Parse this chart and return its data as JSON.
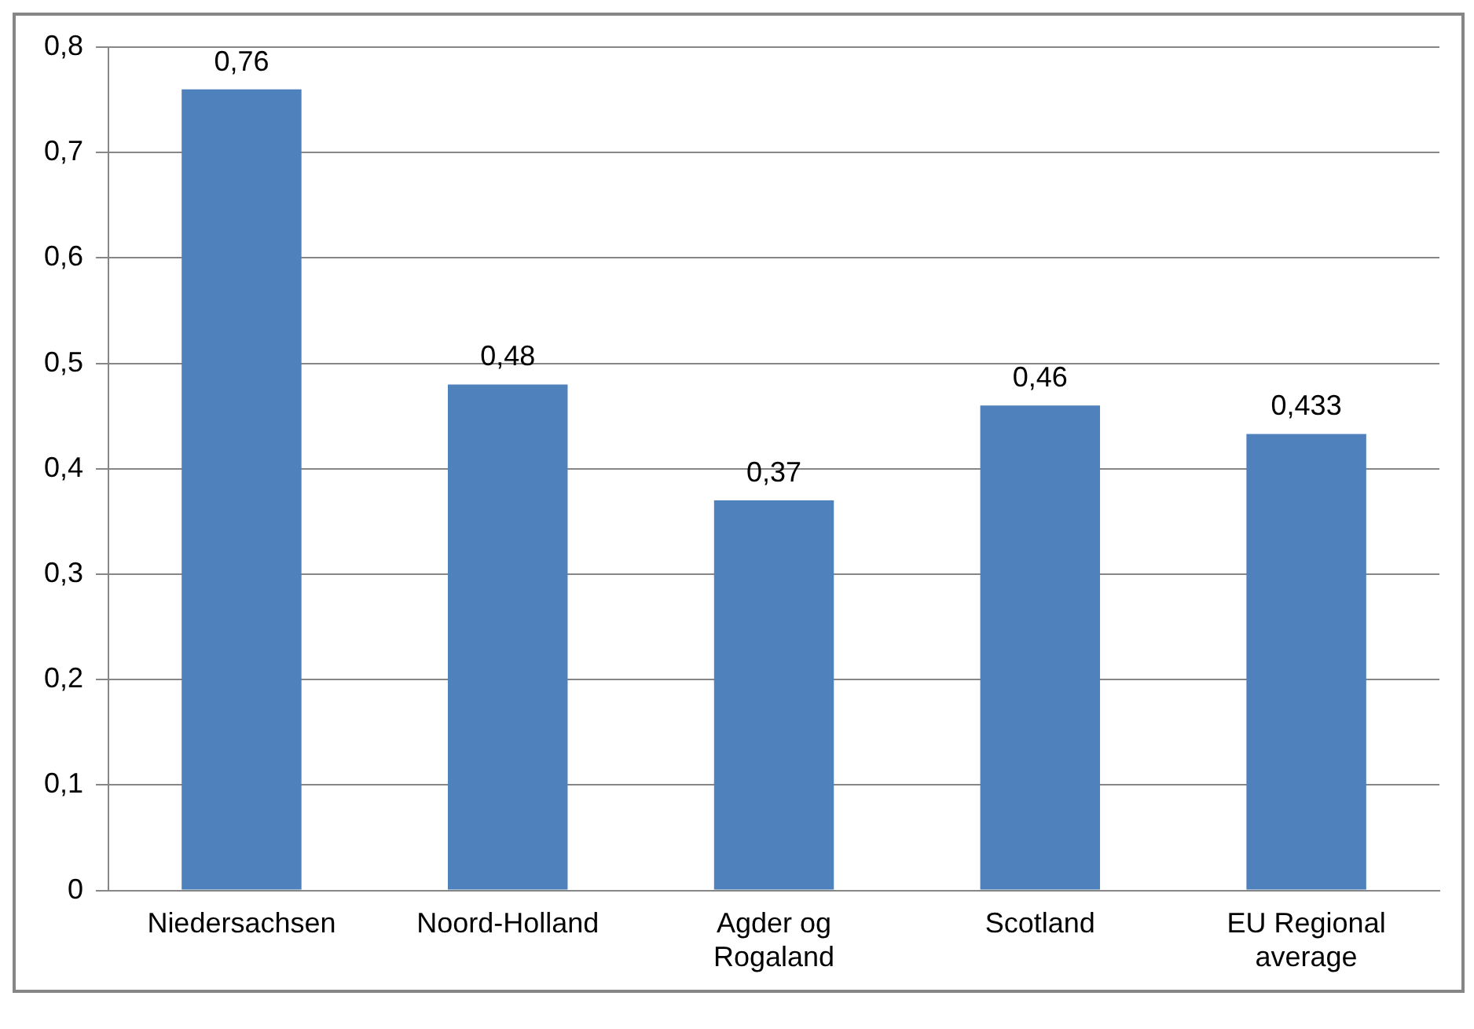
{
  "chart_data": {
    "type": "bar",
    "categories": [
      "Niedersachsen",
      "Noord-Holland",
      "Agder og Rogaland",
      "Scotland",
      "EU Regional average"
    ],
    "values": [
      0.76,
      0.48,
      0.37,
      0.46,
      0.433
    ],
    "color": "#4f81bd",
    "value_labels": [
      "0,76",
      "0,48",
      "0,37",
      "0,46",
      "0,433"
    ],
    "ylim": [
      0,
      0.8
    ],
    "yticks": [
      {
        "value": 0,
        "label": "0"
      },
      {
        "value": 0.1,
        "label": "0,1"
      },
      {
        "value": 0.2,
        "label": "0,2"
      },
      {
        "value": 0.3,
        "label": "0,3"
      },
      {
        "value": 0.4,
        "label": "0,4"
      },
      {
        "value": 0.5,
        "label": "0,5"
      },
      {
        "value": 0.6,
        "label": "0,6"
      },
      {
        "value": 0.7,
        "label": "0,7"
      },
      {
        "value": 0.8,
        "label": "0,8"
      }
    ],
    "grid": "y",
    "legend": false
  }
}
